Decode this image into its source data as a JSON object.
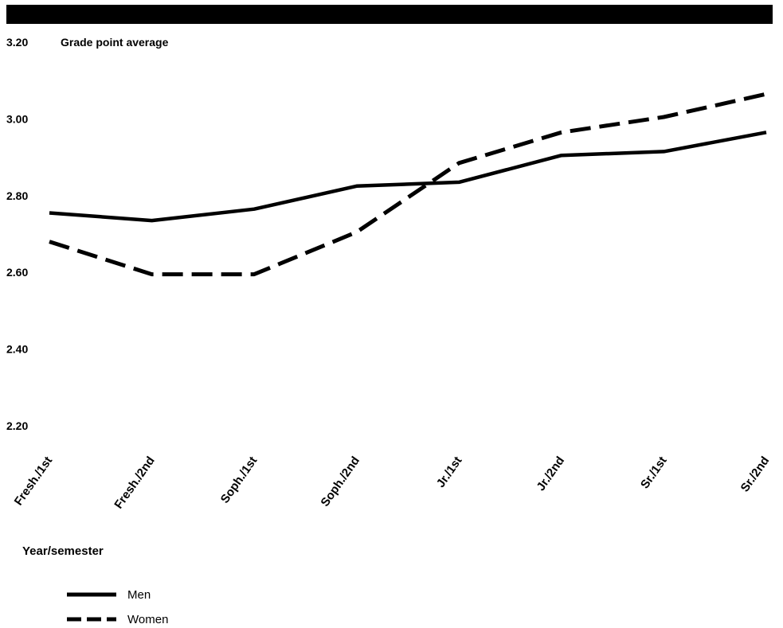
{
  "chart_data": {
    "type": "line",
    "title": "",
    "ylabel": "Grade point average",
    "xlabel": "Year/semester",
    "categories": [
      "Fresh./1st",
      "Fresh./2nd",
      "Soph./1st",
      "Soph./2nd",
      "Jr./1st",
      "Jr./2nd",
      "Sr./1st",
      "Sr./2nd"
    ],
    "yticks": [
      "2.20",
      "2.40",
      "2.60",
      "2.80",
      "3.00",
      "3.20"
    ],
    "ylim": [
      2.2,
      3.2
    ],
    "grid": false,
    "legend_position": "bottom-left",
    "series": [
      {
        "name": "Men",
        "style": "solid",
        "color": "#000000",
        "values": [
          2.755,
          2.735,
          2.765,
          2.825,
          2.835,
          2.905,
          2.915,
          2.965
        ]
      },
      {
        "name": "Women",
        "style": "dashed",
        "color": "#000000",
        "values": [
          2.68,
          2.595,
          2.595,
          2.705,
          2.885,
          2.965,
          3.005,
          3.065
        ]
      }
    ]
  }
}
